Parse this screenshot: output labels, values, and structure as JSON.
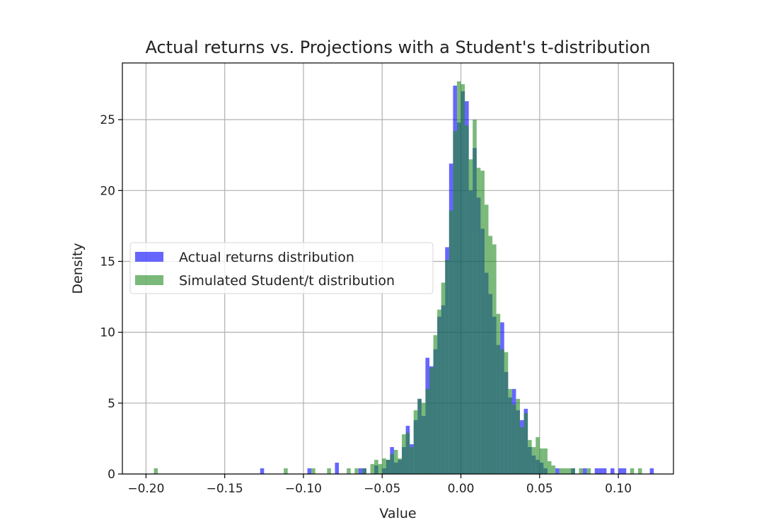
{
  "chart_data": {
    "type": "histogram",
    "title": "Actual returns vs. Projections with a Student's t-distribution",
    "xlabel": "Value",
    "ylabel": "Density",
    "xlim": [
      -0.215,
      0.135
    ],
    "ylim": [
      0,
      29
    ],
    "x_ticks": [
      -0.2,
      -0.15,
      -0.1,
      -0.05,
      0.0,
      0.05,
      0.1
    ],
    "x_tick_labels": [
      "−0.20",
      "−0.15",
      "−0.10",
      "−0.05",
      "0.00",
      "0.05",
      "0.10"
    ],
    "y_ticks": [
      0,
      5,
      10,
      15,
      20,
      25
    ],
    "y_tick_labels": [
      "0",
      "5",
      "10",
      "15",
      "20",
      "25"
    ],
    "grid": true,
    "legend_position": "center-left",
    "bin_width": 0.0025,
    "series": [
      {
        "name": "Actual returns distribution",
        "color": "#0000ff",
        "alpha": 0.6,
        "bins": [
          [
            -0.1275,
            0.4
          ],
          [
            -0.0975,
            0.4
          ],
          [
            -0.08,
            0.8
          ],
          [
            -0.065,
            0.4
          ],
          [
            -0.0625,
            0.4
          ],
          [
            -0.055,
            0.6
          ],
          [
            -0.05,
            0.4
          ],
          [
            -0.0475,
            1.0
          ],
          [
            -0.045,
            1.9
          ],
          [
            -0.0425,
            0.8
          ],
          [
            -0.04,
            1.0
          ],
          [
            -0.0375,
            1.9
          ],
          [
            -0.035,
            3.4
          ],
          [
            -0.0325,
            2.1
          ],
          [
            -0.03,
            3.8
          ],
          [
            -0.0275,
            5.3
          ],
          [
            -0.025,
            4.1
          ],
          [
            -0.0225,
            8.2
          ],
          [
            -0.02,
            7.6
          ],
          [
            -0.0175,
            8.8
          ],
          [
            -0.015,
            11.1
          ],
          [
            -0.0125,
            11.9
          ],
          [
            -0.01,
            16.0
          ],
          [
            -0.0075,
            21.9
          ],
          [
            -0.005,
            27.4
          ],
          [
            -0.0025,
            24.8
          ],
          [
            0.0,
            27.0
          ],
          [
            0.0025,
            26.3
          ],
          [
            0.005,
            20.0
          ],
          [
            0.0075,
            23.0
          ],
          [
            0.01,
            19.5
          ],
          [
            0.0125,
            17.3
          ],
          [
            0.015,
            14.2
          ],
          [
            0.0175,
            12.7
          ],
          [
            0.02,
            11.1
          ],
          [
            0.0225,
            9.1
          ],
          [
            0.025,
            10.7
          ],
          [
            0.0275,
            7.2
          ],
          [
            0.03,
            5.4
          ],
          [
            0.0325,
            6.0
          ],
          [
            0.035,
            4.5
          ],
          [
            0.0375,
            3.8
          ],
          [
            0.04,
            4.6
          ],
          [
            0.0425,
            1.9
          ],
          [
            0.045,
            1.3
          ],
          [
            0.0475,
            1.0
          ],
          [
            0.05,
            0.8
          ],
          [
            0.0525,
            0.4
          ],
          [
            0.06,
            0.4
          ],
          [
            0.07,
            0.4
          ],
          [
            0.0775,
            0.4
          ],
          [
            0.085,
            0.4
          ],
          [
            0.0875,
            0.4
          ],
          [
            0.09,
            0.4
          ],
          [
            0.095,
            0.4
          ],
          [
            0.1,
            0.4
          ],
          [
            0.1025,
            0.4
          ],
          [
            0.12,
            0.4
          ]
        ]
      },
      {
        "name": "Simulated Student/t distribution",
        "color": "#228b22",
        "alpha": 0.6,
        "bins": [
          [
            -0.195,
            0.4
          ],
          [
            -0.1125,
            0.4
          ],
          [
            -0.095,
            0.4
          ],
          [
            -0.085,
            0.4
          ],
          [
            -0.0725,
            0.4
          ],
          [
            -0.0675,
            0.4
          ],
          [
            -0.0625,
            0.4
          ],
          [
            -0.0575,
            0.7
          ],
          [
            -0.055,
            1.0
          ],
          [
            -0.0525,
            0.7
          ],
          [
            -0.05,
            1.1
          ],
          [
            -0.0475,
            1.0
          ],
          [
            -0.045,
            1.4
          ],
          [
            -0.0425,
            1.7
          ],
          [
            -0.04,
            1.1
          ],
          [
            -0.0375,
            2.8
          ],
          [
            -0.035,
            2.9
          ],
          [
            -0.0325,
            1.9
          ],
          [
            -0.03,
            4.5
          ],
          [
            -0.0275,
            5.3
          ],
          [
            -0.025,
            5.0
          ],
          [
            -0.0225,
            6.0
          ],
          [
            -0.02,
            7.5
          ],
          [
            -0.0175,
            9.8
          ],
          [
            -0.015,
            11.6
          ],
          [
            -0.0125,
            13.5
          ],
          [
            -0.01,
            15.1
          ],
          [
            -0.0075,
            18.6
          ],
          [
            -0.005,
            24.2
          ],
          [
            -0.0025,
            27.7
          ],
          [
            0.0,
            27.5
          ],
          [
            0.0025,
            24.6
          ],
          [
            0.005,
            22.2
          ],
          [
            0.0075,
            25.0
          ],
          [
            0.01,
            21.6
          ],
          [
            0.0125,
            21.4
          ],
          [
            0.015,
            19.0
          ],
          [
            0.0175,
            16.8
          ],
          [
            0.02,
            16.2
          ],
          [
            0.0225,
            11.3
          ],
          [
            0.025,
            8.8
          ],
          [
            0.0275,
            8.6
          ],
          [
            0.03,
            6.0
          ],
          [
            0.0325,
            4.9
          ],
          [
            0.035,
            5.3
          ],
          [
            0.0375,
            3.3
          ],
          [
            0.04,
            4.3
          ],
          [
            0.0425,
            2.4
          ],
          [
            0.045,
            1.9
          ],
          [
            0.0475,
            2.6
          ],
          [
            0.05,
            1.8
          ],
          [
            0.0525,
            1.8
          ],
          [
            0.055,
            0.9
          ],
          [
            0.0575,
            0.6
          ],
          [
            0.0625,
            0.4
          ],
          [
            0.065,
            0.4
          ],
          [
            0.0675,
            0.4
          ],
          [
            0.07,
            0.4
          ],
          [
            0.075,
            0.4
          ],
          [
            0.08,
            0.4
          ],
          [
            0.1075,
            0.4
          ],
          [
            0.1125,
            0.4
          ]
        ]
      }
    ]
  }
}
